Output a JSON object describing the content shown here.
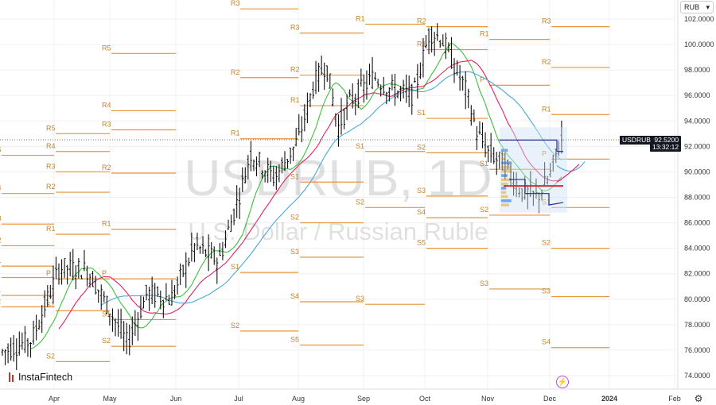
{
  "chart_data": {
    "type": "candlestick",
    "symbol": "USDRUB",
    "timeframe": "1D",
    "watermark_title": "USDRUB, 1D",
    "watermark_subtitle": "U.S. Dollar / Russian Ruble",
    "currency": "RUB",
    "last_price": "92.5200",
    "countdown": "13:32:12",
    "ylim": [
      73,
      103
    ],
    "y_ticks": [
      "102.0000",
      "100.0000",
      "98.0000",
      "96.0000",
      "94.0000",
      "92.0000",
      "90.0000",
      "88.0000",
      "86.0000",
      "84.0000",
      "82.0000",
      "80.0000",
      "78.0000",
      "76.0000",
      "74.0000"
    ],
    "x_ticks": [
      "Apr",
      "May",
      "Jun",
      "Jul",
      "Aug",
      "Sep",
      "Oct",
      "Nov",
      "Dec",
      "2024",
      "Feb"
    ],
    "candles_close_approx": [
      {
        "month": "Apr",
        "range": [
          75.5,
          83.0
        ]
      },
      {
        "month": "May",
        "range": [
          75.0,
          82.5
        ]
      },
      {
        "month": "Jun",
        "range": [
          78.5,
          85.0
        ]
      },
      {
        "month": "Jul",
        "range": [
          81.5,
          94.5
        ]
      },
      {
        "month": "Aug",
        "range": [
          87.0,
          102.0
        ]
      },
      {
        "month": "Sep",
        "range": [
          93.0,
          99.5
        ]
      },
      {
        "month": "Oct",
        "range": [
          92.0,
          102.2
        ]
      },
      {
        "month": "Nov",
        "range": [
          87.0,
          94.0
        ]
      },
      {
        "month": "Dec",
        "range": [
          88.0,
          93.5
        ]
      }
    ],
    "pivot_periods": [
      {
        "levels": [
          {
            "label": "R5",
            "value": 91.3
          },
          {
            "label": "R4",
            "value": 88.3
          },
          {
            "label": "R3",
            "value": 85.9
          },
          {
            "label": "R2",
            "value": 84.2
          },
          {
            "label": "R1",
            "value": 82.6
          },
          {
            "label": "P",
            "value": 81.7
          },
          {
            "label": "S1",
            "value": 80.3
          },
          {
            "label": "S2",
            "value": 79.4
          }
        ]
      },
      {
        "levels": [
          {
            "label": "R5",
            "value": 93.0
          },
          {
            "label": "R4",
            "value": 91.6
          },
          {
            "label": "R3",
            "value": 90.0
          },
          {
            "label": "R2",
            "value": 88.4
          },
          {
            "label": "R1",
            "value": 85.1
          },
          {
            "label": "P",
            "value": 81.6
          },
          {
            "label": "S1",
            "value": 79.1
          },
          {
            "label": "S2",
            "value": 75.1
          }
        ]
      },
      {
        "levels": [
          {
            "label": "R5",
            "value": 99.3
          },
          {
            "label": "R4",
            "value": 94.8
          },
          {
            "label": "R3",
            "value": 93.3
          },
          {
            "label": "R2",
            "value": 89.9
          },
          {
            "label": "R1",
            "value": 85.5
          },
          {
            "label": "P",
            "value": 81.6
          },
          {
            "label": "S1",
            "value": 78.4
          },
          {
            "label": "S2",
            "value": 76.3
          }
        ]
      },
      {
        "levels": [
          {
            "label": "R3",
            "value": 102.8
          },
          {
            "label": "R2",
            "value": 97.4
          },
          {
            "label": "R1",
            "value": 92.6
          },
          {
            "label": "S1",
            "value": 82.1
          },
          {
            "label": "S2",
            "value": 77.5
          }
        ]
      },
      {
        "levels": [
          {
            "label": "R3",
            "value": 100.9
          },
          {
            "label": "R2",
            "value": 97.6
          },
          {
            "label": "R1",
            "value": 95.2
          },
          {
            "label": "S1",
            "value": 89.2
          },
          {
            "label": "S2",
            "value": 86.0
          },
          {
            "label": "S3",
            "value": 83.3
          },
          {
            "label": "S4",
            "value": 79.8
          },
          {
            "label": "S5",
            "value": 76.4
          }
        ]
      },
      {
        "levels": [
          {
            "label": "R1",
            "value": 101.6
          },
          {
            "label": "S1",
            "value": 91.6
          },
          {
            "label": "S2",
            "value": 87.2
          },
          {
            "label": "S3",
            "value": 79.6
          }
        ]
      },
      {
        "levels": [
          {
            "label": "R2",
            "value": 101.4
          },
          {
            "label": "R1",
            "value": 99.6
          },
          {
            "label": "S1",
            "value": 94.2
          },
          {
            "label": "S2",
            "value": 91.5
          },
          {
            "label": "S3",
            "value": 88.1
          },
          {
            "label": "S4",
            "value": 86.4
          },
          {
            "label": "S5",
            "value": 84.0
          }
        ]
      },
      {
        "levels": [
          {
            "label": "R1",
            "value": 100.4
          },
          {
            "label": "P",
            "value": 96.8
          },
          {
            "label": "S1",
            "value": 90.2
          },
          {
            "label": "S2",
            "value": 86.6
          },
          {
            "label": "S3",
            "value": 80.8
          }
        ]
      },
      {
        "levels": [
          {
            "label": "R3",
            "value": 101.4
          },
          {
            "label": "R2",
            "value": 98.2
          },
          {
            "label": "R1",
            "value": 94.5
          },
          {
            "label": "P",
            "value": 91.0
          },
          {
            "label": "S1",
            "value": 87.2
          },
          {
            "label": "S2",
            "value": 84.0
          },
          {
            "label": "S3",
            "value": 80.2
          },
          {
            "label": "S4",
            "value": 76.2
          }
        ]
      }
    ],
    "pivot_labels": [
      "R1",
      "R2",
      "R3",
      "R4",
      "R5",
      "P",
      "S1",
      "S2",
      "S3",
      "S4",
      "S5"
    ],
    "moving_averages": [
      {
        "color": "#3fbf3f"
      },
      {
        "color": "#e0245e"
      },
      {
        "color": "#4aa8d8"
      }
    ],
    "colors": {
      "candles": "#000000",
      "pivot": "#e8943a",
      "grid": "#eeeeee"
    }
  },
  "brand": "InstaFintech",
  "icons": {
    "settings": "gear-icon",
    "alert": "lightning-icon",
    "dropdown": "chevron-down-icon"
  }
}
